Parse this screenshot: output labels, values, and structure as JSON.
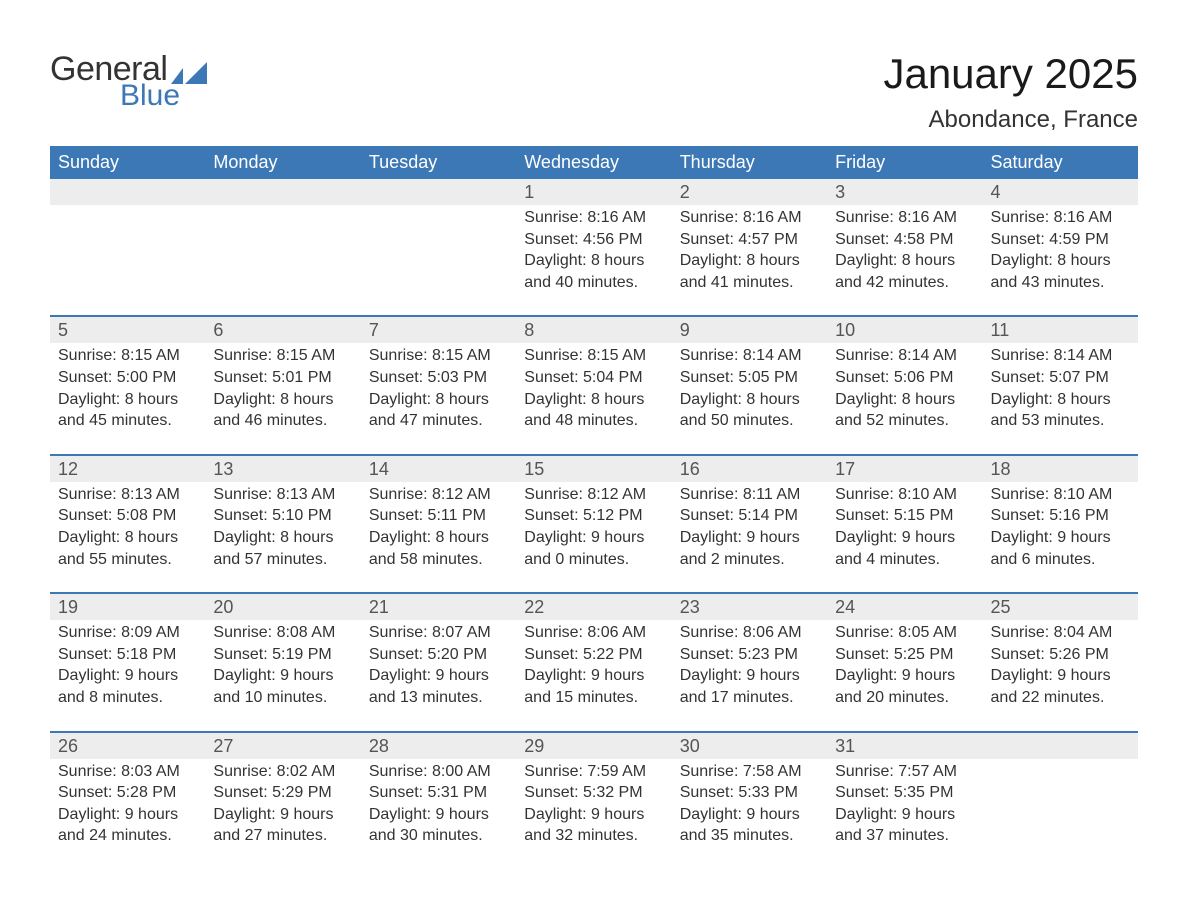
{
  "logo": {
    "text_general": "General",
    "text_blue": "Blue",
    "flag_color": "#3d78b6"
  },
  "title": "January 2025",
  "location": "Abondance, France",
  "colors": {
    "header_bg": "#3d78b6",
    "header_text": "#ffffff",
    "daynum_bg": "#ededed",
    "daynum_text": "#555555",
    "body_text": "#333333",
    "week_separator": "#3d78b6",
    "page_bg": "#ffffff"
  },
  "fonts": {
    "title_size_pt": 32,
    "location_size_pt": 18,
    "header_size_pt": 14,
    "cell_size_pt": 12
  },
  "layout": {
    "columns": 7,
    "rows": 5,
    "first_day_column_index": 3
  },
  "day_headers": [
    "Sunday",
    "Monday",
    "Tuesday",
    "Wednesday",
    "Thursday",
    "Friday",
    "Saturday"
  ],
  "days": [
    {
      "n": 1,
      "sunrise": "8:16 AM",
      "sunset": "4:56 PM",
      "dl_h": 8,
      "dl_m": 40
    },
    {
      "n": 2,
      "sunrise": "8:16 AM",
      "sunset": "4:57 PM",
      "dl_h": 8,
      "dl_m": 41
    },
    {
      "n": 3,
      "sunrise": "8:16 AM",
      "sunset": "4:58 PM",
      "dl_h": 8,
      "dl_m": 42
    },
    {
      "n": 4,
      "sunrise": "8:16 AM",
      "sunset": "4:59 PM",
      "dl_h": 8,
      "dl_m": 43
    },
    {
      "n": 5,
      "sunrise": "8:15 AM",
      "sunset": "5:00 PM",
      "dl_h": 8,
      "dl_m": 45
    },
    {
      "n": 6,
      "sunrise": "8:15 AM",
      "sunset": "5:01 PM",
      "dl_h": 8,
      "dl_m": 46
    },
    {
      "n": 7,
      "sunrise": "8:15 AM",
      "sunset": "5:03 PM",
      "dl_h": 8,
      "dl_m": 47
    },
    {
      "n": 8,
      "sunrise": "8:15 AM",
      "sunset": "5:04 PM",
      "dl_h": 8,
      "dl_m": 48
    },
    {
      "n": 9,
      "sunrise": "8:14 AM",
      "sunset": "5:05 PM",
      "dl_h": 8,
      "dl_m": 50
    },
    {
      "n": 10,
      "sunrise": "8:14 AM",
      "sunset": "5:06 PM",
      "dl_h": 8,
      "dl_m": 52
    },
    {
      "n": 11,
      "sunrise": "8:14 AM",
      "sunset": "5:07 PM",
      "dl_h": 8,
      "dl_m": 53
    },
    {
      "n": 12,
      "sunrise": "8:13 AM",
      "sunset": "5:08 PM",
      "dl_h": 8,
      "dl_m": 55
    },
    {
      "n": 13,
      "sunrise": "8:13 AM",
      "sunset": "5:10 PM",
      "dl_h": 8,
      "dl_m": 57
    },
    {
      "n": 14,
      "sunrise": "8:12 AM",
      "sunset": "5:11 PM",
      "dl_h": 8,
      "dl_m": 58
    },
    {
      "n": 15,
      "sunrise": "8:12 AM",
      "sunset": "5:12 PM",
      "dl_h": 9,
      "dl_m": 0
    },
    {
      "n": 16,
      "sunrise": "8:11 AM",
      "sunset": "5:14 PM",
      "dl_h": 9,
      "dl_m": 2
    },
    {
      "n": 17,
      "sunrise": "8:10 AM",
      "sunset": "5:15 PM",
      "dl_h": 9,
      "dl_m": 4
    },
    {
      "n": 18,
      "sunrise": "8:10 AM",
      "sunset": "5:16 PM",
      "dl_h": 9,
      "dl_m": 6
    },
    {
      "n": 19,
      "sunrise": "8:09 AM",
      "sunset": "5:18 PM",
      "dl_h": 9,
      "dl_m": 8
    },
    {
      "n": 20,
      "sunrise": "8:08 AM",
      "sunset": "5:19 PM",
      "dl_h": 9,
      "dl_m": 10
    },
    {
      "n": 21,
      "sunrise": "8:07 AM",
      "sunset": "5:20 PM",
      "dl_h": 9,
      "dl_m": 13
    },
    {
      "n": 22,
      "sunrise": "8:06 AM",
      "sunset": "5:22 PM",
      "dl_h": 9,
      "dl_m": 15
    },
    {
      "n": 23,
      "sunrise": "8:06 AM",
      "sunset": "5:23 PM",
      "dl_h": 9,
      "dl_m": 17
    },
    {
      "n": 24,
      "sunrise": "8:05 AM",
      "sunset": "5:25 PM",
      "dl_h": 9,
      "dl_m": 20
    },
    {
      "n": 25,
      "sunrise": "8:04 AM",
      "sunset": "5:26 PM",
      "dl_h": 9,
      "dl_m": 22
    },
    {
      "n": 26,
      "sunrise": "8:03 AM",
      "sunset": "5:28 PM",
      "dl_h": 9,
      "dl_m": 24
    },
    {
      "n": 27,
      "sunrise": "8:02 AM",
      "sunset": "5:29 PM",
      "dl_h": 9,
      "dl_m": 27
    },
    {
      "n": 28,
      "sunrise": "8:00 AM",
      "sunset": "5:31 PM",
      "dl_h": 9,
      "dl_m": 30
    },
    {
      "n": 29,
      "sunrise": "7:59 AM",
      "sunset": "5:32 PM",
      "dl_h": 9,
      "dl_m": 32
    },
    {
      "n": 30,
      "sunrise": "7:58 AM",
      "sunset": "5:33 PM",
      "dl_h": 9,
      "dl_m": 35
    },
    {
      "n": 31,
      "sunrise": "7:57 AM",
      "sunset": "5:35 PM",
      "dl_h": 9,
      "dl_m": 37
    }
  ],
  "labels": {
    "sunrise": "Sunrise:",
    "sunset": "Sunset:",
    "daylight": "Daylight:",
    "hours": "hours",
    "and": "and",
    "minutes": "minutes."
  }
}
